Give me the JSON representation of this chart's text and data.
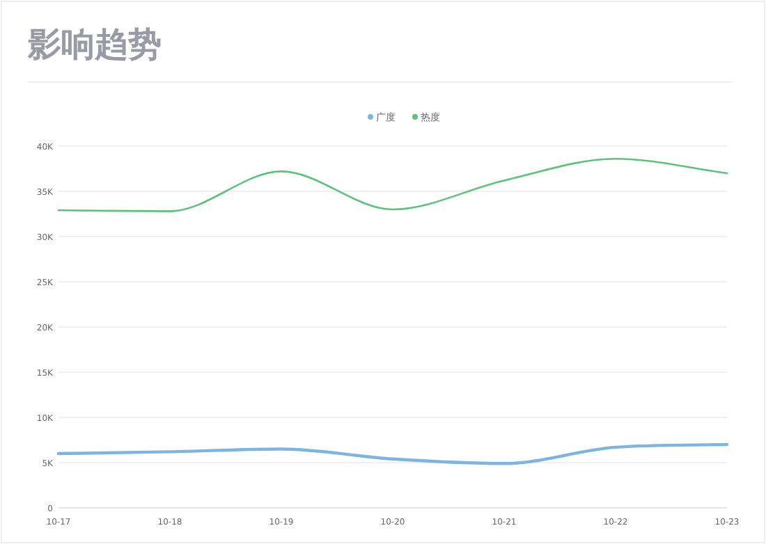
{
  "chart_data": {
    "type": "line",
    "title": "影响趋势",
    "categories": [
      "10-17",
      "10-18",
      "10-19",
      "10-20",
      "10-21",
      "10-22",
      "10-23"
    ],
    "series": [
      {
        "name": "广度",
        "color": "#7cb5e0",
        "values": [
          6000,
          6200,
          6500,
          5400,
          4900,
          6700,
          7000
        ]
      },
      {
        "name": "热度",
        "color": "#5cc27c",
        "values": [
          32900,
          32800,
          37200,
          33000,
          36200,
          38600,
          37000
        ]
      }
    ],
    "ylim": [
      0,
      40000
    ],
    "yticks": [
      {
        "value": 0,
        "label": "0"
      },
      {
        "value": 5000,
        "label": "5K"
      },
      {
        "value": 10000,
        "label": "10K"
      },
      {
        "value": 15000,
        "label": "15K"
      },
      {
        "value": 20000,
        "label": "20K"
      },
      {
        "value": 25000,
        "label": "25K"
      },
      {
        "value": 30000,
        "label": "30K"
      },
      {
        "value": 35000,
        "label": "35K"
      },
      {
        "value": 40000,
        "label": "40K"
      }
    ],
    "grid": "y",
    "legend": "top",
    "marker": "none",
    "line_style": "solid"
  }
}
